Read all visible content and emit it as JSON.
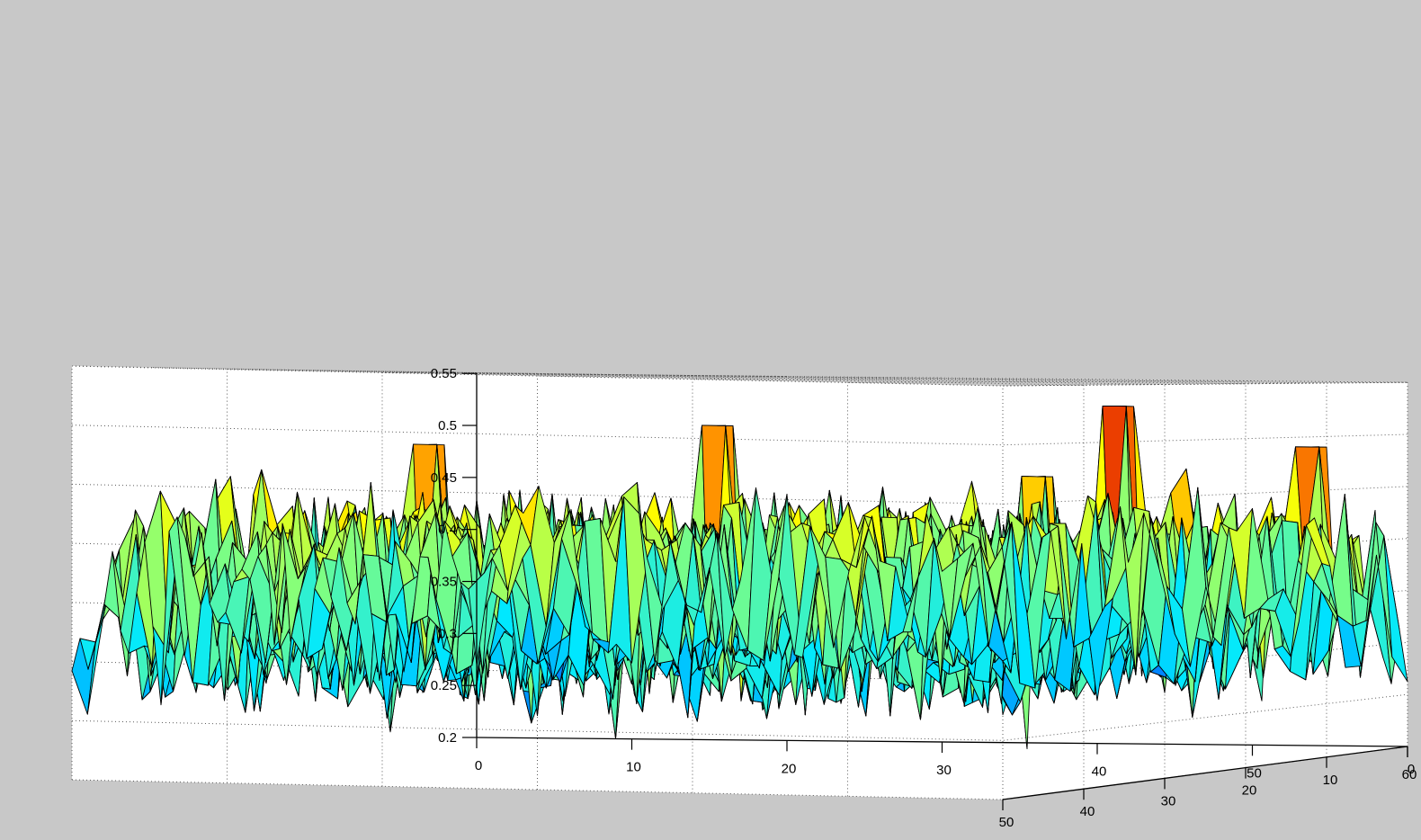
{
  "chart_data": {
    "type": "surface",
    "title": "",
    "xlabel": "",
    "ylabel": "",
    "zlabel": "",
    "xlim": [
      0,
      60
    ],
    "ylim": [
      0,
      50
    ],
    "zlim": [
      0.2,
      0.55
    ],
    "x_ticks": [
      "0",
      "10",
      "20",
      "30",
      "40",
      "50",
      "60"
    ],
    "y_ticks": [
      "50",
      "40",
      "30",
      "20",
      "10",
      "0"
    ],
    "z_ticks": [
      "0.2",
      "0.25",
      "0.3",
      "0.35",
      "0.4",
      "0.45",
      "0.5",
      "0.55"
    ],
    "grid": true,
    "colormap": [
      "#0000c8",
      "#0080ff",
      "#00e8ff",
      "#80ff80",
      "#ffff00",
      "#ff9000",
      "#e01000"
    ],
    "surface": {
      "grid_size": [
        60,
        50
      ],
      "z_mean": 0.35,
      "z_min": 0.19,
      "z_max": 0.535,
      "peaks": [
        {
          "x": 23,
          "y": 50,
          "z": 0.49
        },
        {
          "x": 39,
          "y": 45,
          "z": 0.51
        },
        {
          "x": 57,
          "y": 30,
          "z": 0.53
        },
        {
          "x": 57,
          "y": 40,
          "z": 0.47
        },
        {
          "x": 59,
          "y": 10,
          "z": 0.49
        }
      ]
    }
  }
}
